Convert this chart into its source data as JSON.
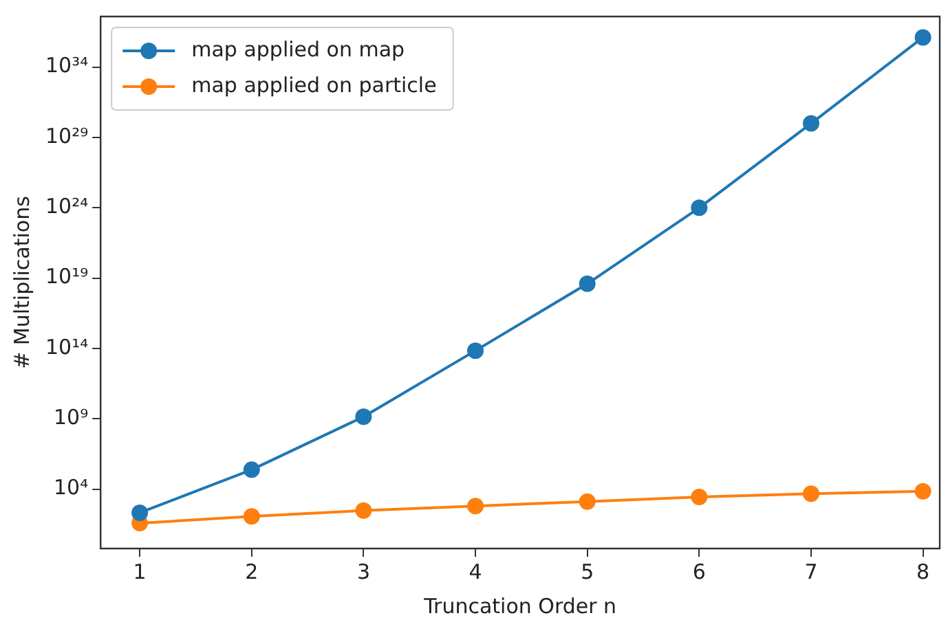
{
  "chart_data": {
    "type": "line",
    "xlabel": "Truncation Order n",
    "ylabel": "# Multiplications",
    "x": [
      1,
      2,
      3,
      4,
      5,
      6,
      7,
      8
    ],
    "series": [
      {
        "name": "map applied on map",
        "color": "#1f77b4",
        "values": [
          210,
          240000,
          1400000000.0,
          70000000000000.0,
          4e+18,
          1e+24,
          1e+30,
          1.3e+36
        ]
      },
      {
        "name": "map applied on particle",
        "color": "#ff7f0e",
        "values": [
          38,
          115,
          300,
          630,
          1300,
          2800,
          4700,
          7000
        ]
      }
    ],
    "log": "y",
    "xlim": [
      0.65,
      8.15
    ],
    "xticks": [
      1,
      2,
      3,
      4,
      5,
      6,
      7,
      8
    ],
    "ylim": [
      0.6,
      4e+37
    ],
    "yticks": [
      {
        "value": 10000.0,
        "label": "10⁴"
      },
      {
        "value": 1000000000.0,
        "label": "10⁹"
      },
      {
        "value": 100000000000000.0,
        "label": "10¹⁴"
      },
      {
        "value": 1e+19,
        "label": "10¹⁹"
      },
      {
        "value": 1e+24,
        "label": "10²⁴"
      },
      {
        "value": 1e+29,
        "label": "10²⁹"
      },
      {
        "value": 1e+34,
        "label": "10³⁴"
      }
    ],
    "grid": false,
    "legend": "top left",
    "marker": "circle",
    "line_style": "solid"
  }
}
